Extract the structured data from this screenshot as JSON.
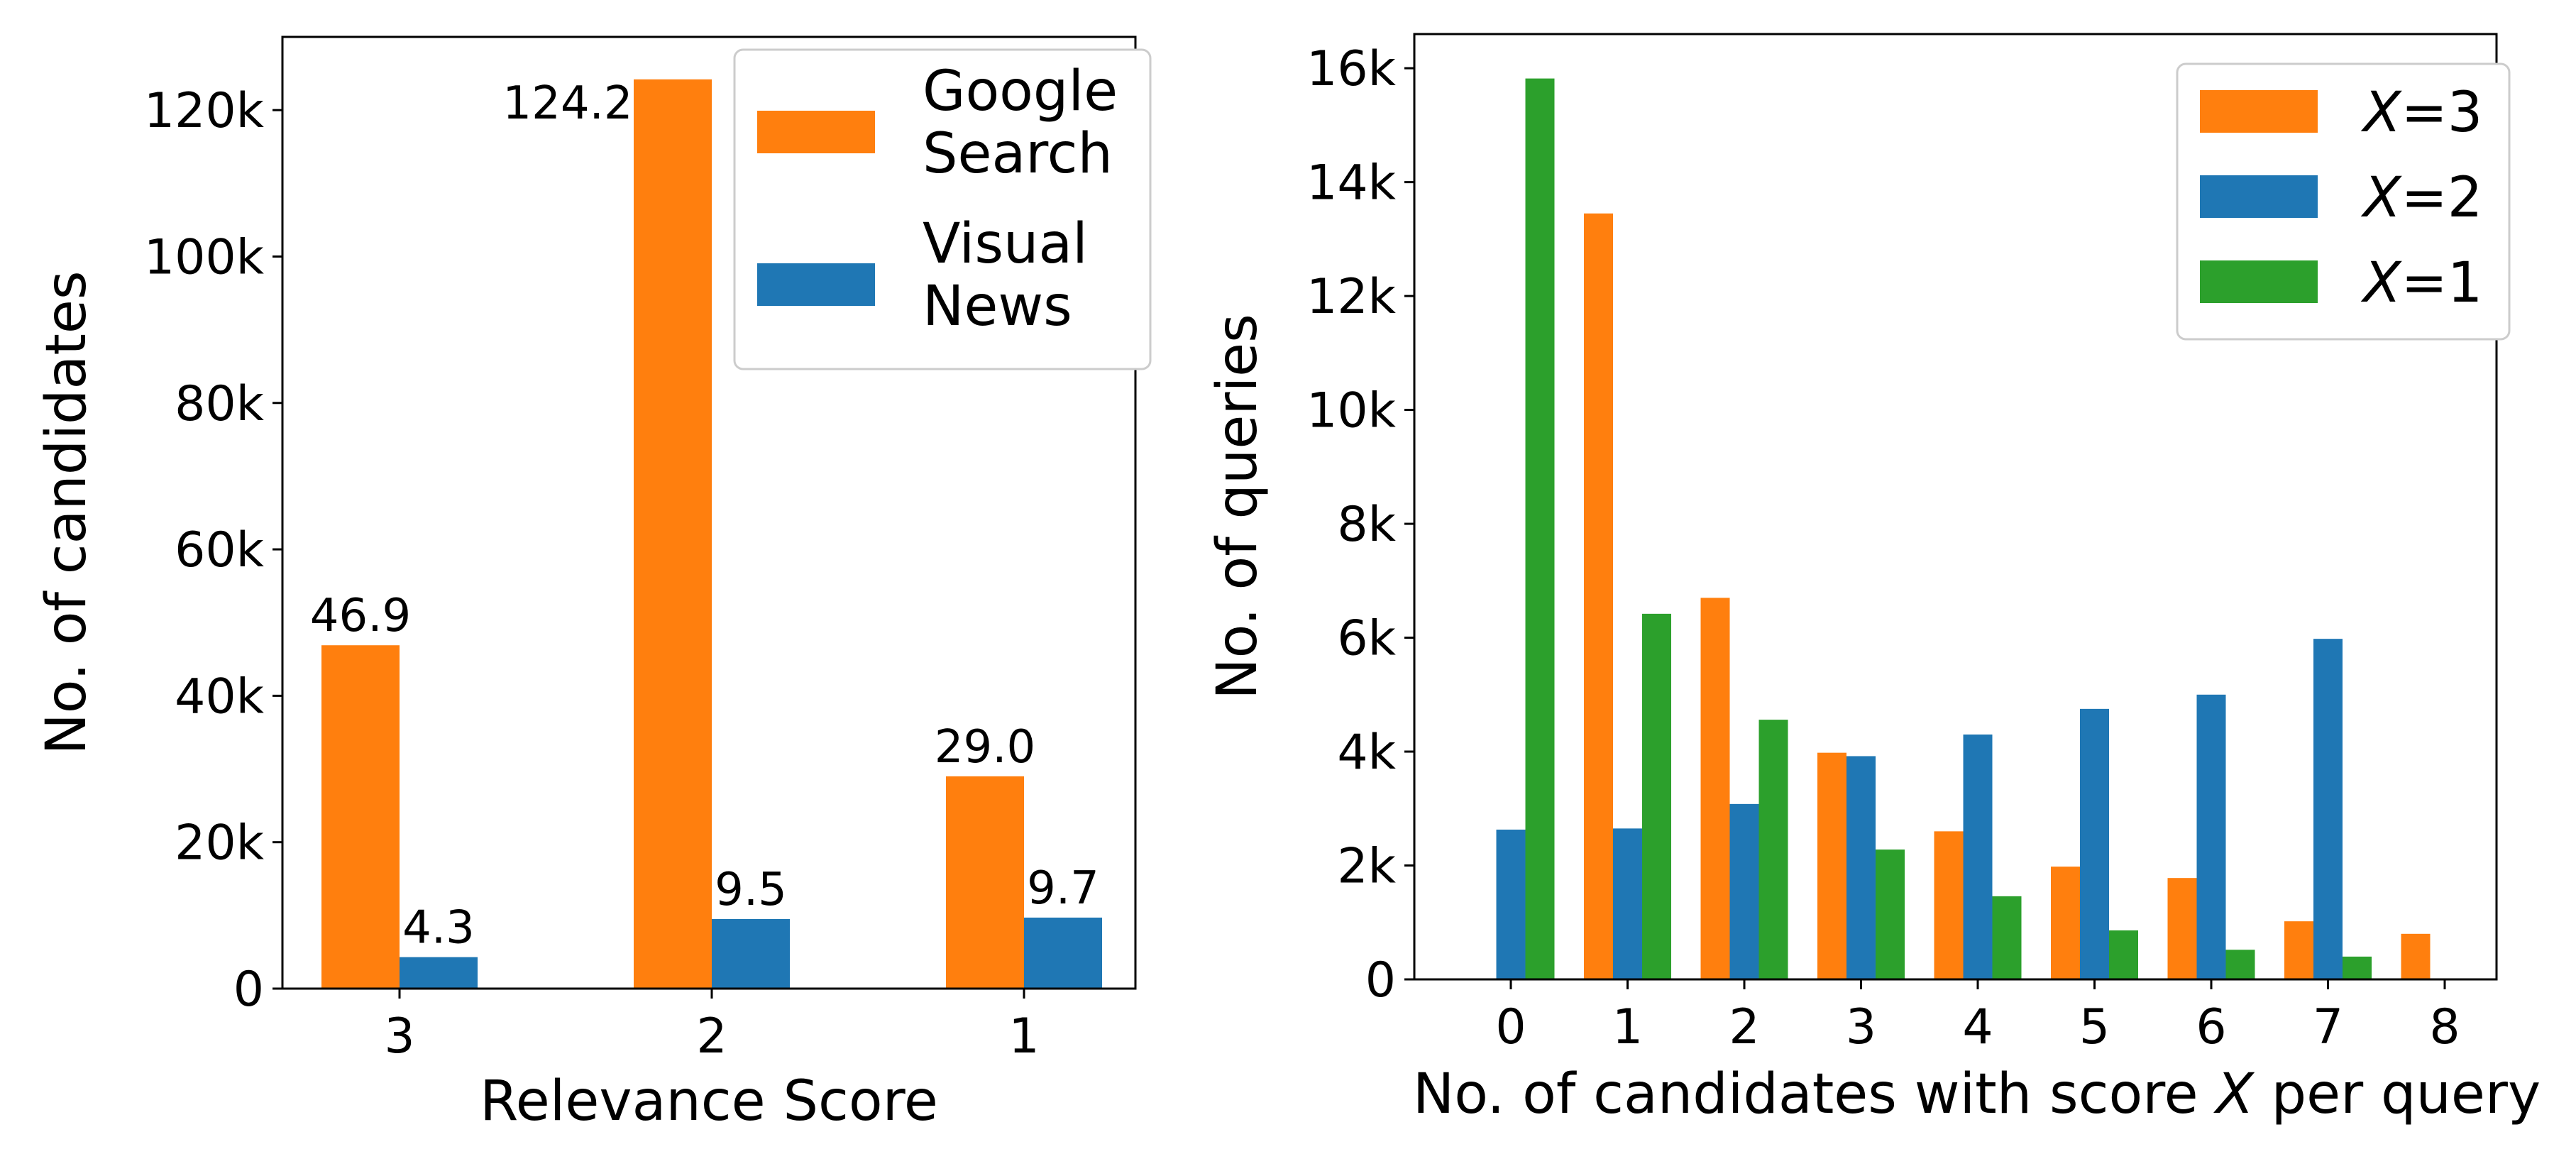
{
  "chart_data": [
    {
      "type": "bar",
      "xlabel": "Relevance Score",
      "ylabel": "No. of candidates",
      "categories": [
        "3",
        "2",
        "1"
      ],
      "ylim": [
        0,
        130000
      ],
      "yticks": [
        0,
        20000,
        40000,
        60000,
        80000,
        100000,
        120000
      ],
      "ytick_labels": [
        "0",
        "20k",
        "40k",
        "60k",
        "80k",
        "100k",
        "120k"
      ],
      "legend_position": "upper right",
      "series": [
        {
          "name": "Google Search",
          "legend_lines": [
            "Google",
            "Search"
          ],
          "color": "#ff7f0e",
          "values": [
            46900,
            124200,
            29000
          ],
          "labels": [
            "46.9",
            "124.2",
            "29.0"
          ]
        },
        {
          "name": "Visual News",
          "legend_lines": [
            "Visual",
            "News"
          ],
          "color": "#1f77b4",
          "values": [
            4300,
            9500,
            9700
          ],
          "labels": [
            "4.3",
            "9.5",
            "9.7"
          ]
        }
      ]
    },
    {
      "type": "bar",
      "xlabel_parts": [
        "No. of candidates with score ",
        "X",
        " per query"
      ],
      "ylabel": "No. of queries",
      "categories": [
        "0",
        "1",
        "2",
        "3",
        "4",
        "5",
        "6",
        "7",
        "8"
      ],
      "ylim": [
        0,
        16600
      ],
      "yticks": [
        0,
        2000,
        4000,
        6000,
        8000,
        10000,
        12000,
        14000,
        16000
      ],
      "ytick_labels": [
        "0",
        "2k",
        "4k",
        "6k",
        "8k",
        "10k",
        "12k",
        "14k",
        "16k"
      ],
      "legend_position": "upper right",
      "series": [
        {
          "name": "X=3",
          "legend_parts": [
            "X",
            "=3"
          ],
          "color": "#ff7f0e",
          "values": [
            0,
            13450,
            6700,
            3980,
            2600,
            1980,
            1780,
            1020,
            800
          ]
        },
        {
          "name": "X=2",
          "legend_parts": [
            "X",
            "=2"
          ],
          "color": "#1f77b4",
          "values": [
            2630,
            2650,
            3080,
            3920,
            4300,
            4750,
            5000,
            5980,
            0
          ]
        },
        {
          "name": "X=1",
          "legend_parts": [
            "X",
            "=1"
          ],
          "color": "#2ca02c",
          "values": [
            15820,
            6420,
            4560,
            2280,
            1460,
            860,
            520,
            400,
            0
          ]
        }
      ]
    }
  ]
}
